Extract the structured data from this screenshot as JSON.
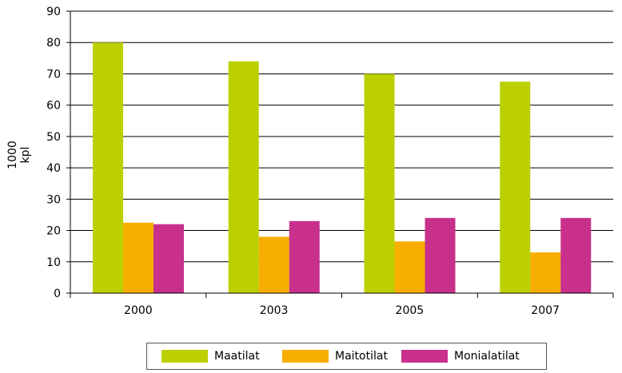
{
  "chart_data": {
    "type": "bar",
    "title": "",
    "xlabel": "",
    "ylabel": "1000 kpl",
    "ylim": [
      0,
      90
    ],
    "yticks": [
      "0",
      "10",
      "20",
      "30",
      "40",
      "50",
      "60",
      "70",
      "80",
      "90"
    ],
    "grid": true,
    "legend_position": "bottom",
    "categories": [
      "2000",
      "2003",
      "2005",
      "2007"
    ],
    "series": [
      {
        "name": "Maatilat",
        "color": "#bccf00",
        "values": [
          80,
          74,
          70,
          67.5
        ]
      },
      {
        "name": "Maitotilat",
        "color": "#f7ae00",
        "values": [
          22.5,
          18,
          16.5,
          13
        ]
      },
      {
        "name": "Monialatilat",
        "color": "#c8308c",
        "values": [
          22,
          23,
          24,
          24
        ]
      }
    ]
  }
}
